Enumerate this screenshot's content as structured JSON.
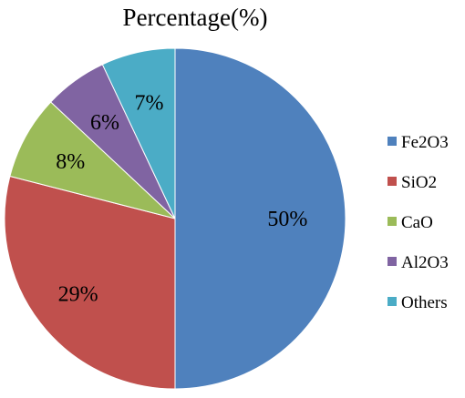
{
  "chart_data": {
    "type": "pie",
    "title": "Percentage(%)",
    "slices": [
      {
        "name": "Fe2O3",
        "value": 50,
        "label": "50%",
        "color": "#4F81BD"
      },
      {
        "name": "SiO2",
        "value": 29,
        "label": "29%",
        "color": "#C0504D"
      },
      {
        "name": "CaO",
        "value": 8,
        "label": "8%",
        "color": "#9BBB59"
      },
      {
        "name": "Al2O3",
        "value": 6,
        "label": "6%",
        "color": "#8064A2"
      },
      {
        "name": "Others",
        "value": 7,
        "label": "7%",
        "color": "#4BACC6"
      }
    ],
    "start": "12 o'clock",
    "direction": "clockwise",
    "legend_position": "right"
  }
}
